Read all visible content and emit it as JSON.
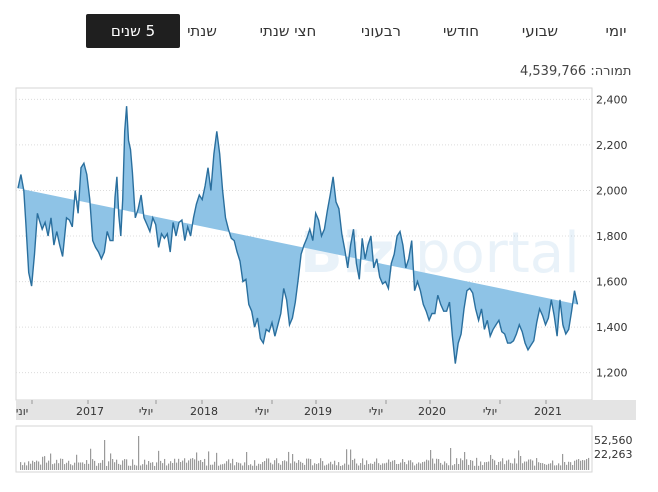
{
  "tabs": [
    {
      "label": "יומי",
      "active": false
    },
    {
      "label": "שבועי",
      "active": false
    },
    {
      "label": "חודשי",
      "active": false
    },
    {
      "label": "רבעוני",
      "active": false
    },
    {
      "label": "חצי שנתי",
      "active": false
    },
    {
      "label": "שנתי",
      "active": false
    },
    {
      "label": "5 שנים",
      "active": true
    }
  ],
  "volume": {
    "label": "תמורה:",
    "value": "4,539,766"
  },
  "watermark": {
    "bold": "Biz",
    "light": "portal"
  },
  "colors": {
    "line": "#2a6f9e",
    "area": "#8ec3e6",
    "volume_bar": "#9a9a9a",
    "axis_band": "#e4e4e4"
  },
  "chart_data": {
    "type": "area",
    "yticks": [
      "2,400",
      "2,200",
      "2,000",
      "1,800",
      "1,600",
      "1,400",
      "1,200"
    ],
    "ytick_values": [
      2400,
      2200,
      2000,
      1800,
      1600,
      1400,
      1200
    ],
    "ylim": [
      1080,
      2450
    ],
    "xlabels": [
      "יוני",
      "2017",
      "יולי",
      "2018",
      "יולי",
      "2019",
      "יולי",
      "2020",
      "יולי",
      "2021"
    ],
    "x": [
      0,
      3,
      6,
      8,
      11,
      14,
      17,
      20,
      22,
      25,
      28,
      31,
      34,
      37,
      40,
      43,
      46,
      50,
      53,
      56,
      59,
      62,
      65,
      68,
      71,
      74,
      77,
      80,
      83,
      86,
      89,
      92,
      95,
      98,
      100,
      102,
      104,
      106,
      108,
      110,
      112,
      114,
      116,
      118,
      121,
      124,
      127,
      130,
      133,
      136,
      139,
      142,
      145,
      148,
      151,
      154,
      157,
      160,
      163,
      166,
      169,
      172,
      175,
      178,
      181,
      184,
      187,
      190,
      193,
      196,
      199,
      202,
      205,
      208,
      211,
      214,
      217,
      220,
      223,
      226,
      229,
      232,
      235,
      238,
      241,
      244,
      247,
      250,
      253,
      256,
      259,
      262,
      265,
      268,
      271,
      274,
      277,
      280,
      283,
      286,
      289,
      292,
      295,
      298,
      301,
      304,
      307,
      310,
      313,
      316,
      319,
      322,
      325,
      328,
      331,
      334,
      337,
      340,
      343,
      346,
      349,
      352,
      355,
      358,
      361,
      364,
      367,
      370,
      373,
      376,
      379,
      382,
      385,
      388,
      391,
      394,
      397,
      400,
      403,
      406,
      409,
      412,
      415,
      418,
      421,
      424,
      427,
      430,
      433,
      436,
      439,
      442,
      445,
      448,
      451,
      454,
      457,
      460,
      463,
      466,
      469,
      472,
      475,
      478,
      481,
      484,
      487,
      490,
      493,
      496,
      499,
      502,
      505,
      508,
      511,
      514,
      517,
      520,
      523,
      526,
      529,
      532,
      535,
      538,
      541,
      544,
      547,
      550,
      553,
      556,
      559,
      562,
      565,
      568,
      571,
      574,
      577,
      580,
      583,
      586,
      589,
      592
    ],
    "price": [
      2010,
      2070,
      2000,
      1860,
      1640,
      1580,
      1720,
      1900,
      1870,
      1830,
      1860,
      1800,
      1880,
      1760,
      1820,
      1760,
      1710,
      1880,
      1870,
      1840,
      2000,
      1900,
      2100,
      2120,
      2070,
      1960,
      1780,
      1750,
      1730,
      1700,
      1730,
      1820,
      1780,
      1780,
      1970,
      2060,
      1890,
      1800,
      1960,
      2260,
      2370,
      2220,
      2180,
      2080,
      1880,
      1920,
      1980,
      1880,
      1850,
      1820,
      1880,
      1850,
      1750,
      1810,
      1790,
      1810,
      1730,
      1860,
      1800,
      1860,
      1870,
      1780,
      1840,
      1800,
      1880,
      1940,
      1980,
      1960,
      2020,
      2100,
      2000,
      2160,
      2260,
      2160,
      2000,
      1880,
      1830,
      1790,
      1780,
      1730,
      1690,
      1600,
      1610,
      1500,
      1470,
      1400,
      1440,
      1350,
      1330,
      1390,
      1380,
      1420,
      1360,
      1410,
      1460,
      1570,
      1520,
      1410,
      1440,
      1510,
      1610,
      1720,
      1760,
      1790,
      1830,
      1780,
      1900,
      1870,
      1800,
      1830,
      1910,
      1980,
      2060,
      1950,
      1920,
      1810,
      1740,
      1660,
      1760,
      1830,
      1680,
      1610,
      1790,
      1700,
      1760,
      1800,
      1660,
      1700,
      1620,
      1590,
      1600,
      1570,
      1680,
      1720,
      1800,
      1820,
      1760,
      1660,
      1700,
      1780,
      1560,
      1600,
      1560,
      1500,
      1470,
      1430,
      1460,
      1460,
      1540,
      1500,
      1470,
      1470,
      1510,
      1360,
      1240,
      1330,
      1370,
      1480,
      1560,
      1570,
      1550,
      1480,
      1430,
      1480,
      1390,
      1430,
      1360,
      1390,
      1410,
      1430,
      1380,
      1370,
      1330,
      1330,
      1340,
      1370,
      1410,
      1380,
      1330,
      1300,
      1320,
      1340,
      1420,
      1480,
      1450,
      1410,
      1440,
      1520,
      1450,
      1360,
      1520,
      1410,
      1370,
      1390,
      1470,
      1560,
      1500
    ],
    "volume_yticks": [
      "52,560",
      "22,263"
    ]
  }
}
